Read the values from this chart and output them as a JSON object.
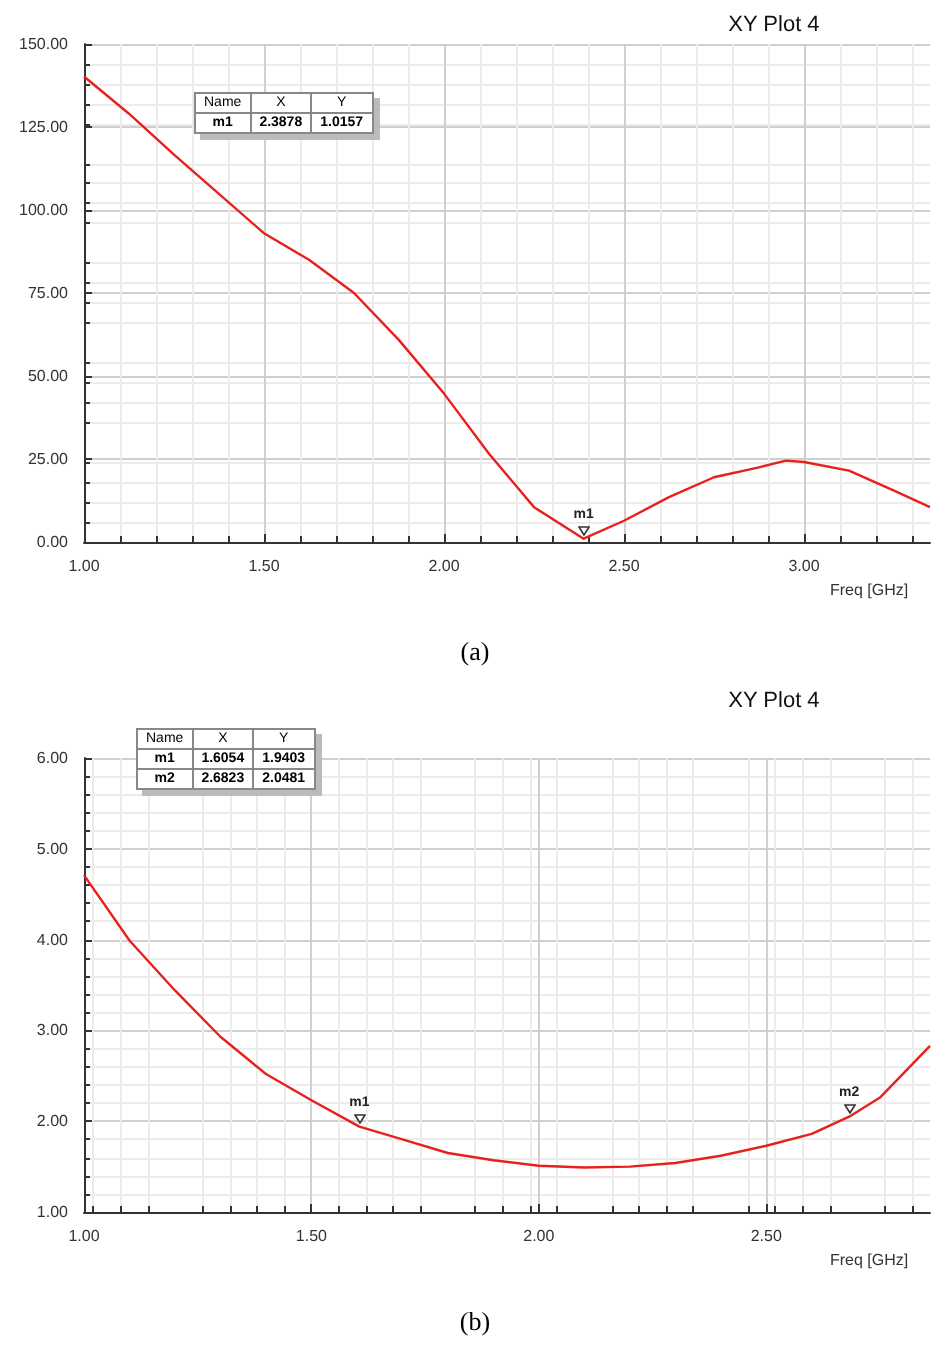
{
  "chart_data": [
    {
      "type": "line",
      "title": "XY Plot 4",
      "xlabel": "Freq [GHz]",
      "x": [
        1.0,
        1.125,
        1.25,
        1.5,
        1.625,
        1.75,
        1.875,
        2.0,
        2.125,
        2.25,
        2.3878,
        2.5,
        2.625,
        2.75,
        2.875,
        2.95,
        3.0,
        3.125,
        3.25,
        3.35
      ],
      "series": [
        {
          "color": "#e8201c",
          "values": [
            140.2,
            129,
            116.7,
            93,
            85,
            75,
            60.8,
            44.7,
            26.6,
            10.5,
            1,
            6.4,
            13.5,
            19.5,
            22.5,
            24.5,
            24.1,
            21.5,
            15.5,
            10.5
          ]
        }
      ],
      "xlim": [
        1,
        3.35
      ],
      "xticks": [
        {
          "value": 1,
          "label": "1.00"
        },
        {
          "value": 1.5,
          "label": "1.50"
        },
        {
          "value": 2,
          "label": "2.00"
        },
        {
          "value": 2.5,
          "label": "2.50"
        },
        {
          "value": 3,
          "label": "3.00"
        }
      ],
      "ylim": [
        0,
        150
      ],
      "yticks": [
        {
          "value": 0,
          "label": "0.00"
        },
        {
          "value": 25,
          "label": "25.00"
        },
        {
          "value": 50,
          "label": "50.00"
        },
        {
          "value": 75,
          "label": "75.00"
        },
        {
          "value": 100,
          "label": "100.00"
        },
        {
          "value": 125,
          "label": "125.00"
        },
        {
          "value": 150,
          "label": "150.00"
        }
      ],
      "grid": true,
      "marker": "none",
      "line_style": "solid",
      "annotations": [
        "(a)",
        "Name",
        "X",
        "Y",
        "m1",
        "2.3878",
        "1.0157",
        {
          "text": "m1",
          "x": 2.3878,
          "y": 1.0157
        }
      ]
    },
    {
      "type": "line",
      "title": "XY Plot 4",
      "xlabel": "Freq [GHz]",
      "x": [
        1.0,
        1.1,
        1.2,
        1.3,
        1.4,
        1.5,
        1.6054,
        1.7,
        1.8,
        1.9,
        2.0,
        2.1,
        2.2,
        2.3,
        2.4,
        2.5,
        2.6,
        2.6823,
        2.75,
        2.86
      ],
      "series": [
        {
          "color": "#e8201c",
          "values": [
            4.71,
            3.99,
            3.44,
            2.93,
            2.52,
            2.23,
            1.94,
            1.8,
            1.65,
            1.57,
            1.51,
            1.49,
            1.5,
            1.54,
            1.62,
            1.73,
            1.86,
            2.05,
            2.26,
            2.83
          ]
        }
      ],
      "xlim": [
        1,
        2.86
      ],
      "xticks": [
        {
          "value": 1,
          "label": "1.00"
        },
        {
          "value": 1.5,
          "label": "1.50"
        },
        {
          "value": 2,
          "label": "2.00"
        },
        {
          "value": 2.5,
          "label": "2.50"
        }
      ],
      "ylim": [
        1,
        6
      ],
      "yticks": [
        {
          "value": 1,
          "label": "1.00"
        },
        {
          "value": 2,
          "label": "2.00"
        },
        {
          "value": 3,
          "label": "3.00"
        },
        {
          "value": 4,
          "label": "4.00"
        },
        {
          "value": 5,
          "label": "5.00"
        },
        {
          "value": 6,
          "label": "6.00"
        }
      ],
      "grid": true,
      "marker": "none",
      "line_style": "solid",
      "annotations": [
        "(b)",
        "Name",
        "X",
        "Y",
        "m1",
        "1.6054",
        "1.9403",
        "m2",
        "2.6823",
        "2.0481",
        {
          "text": "m1",
          "x": 1.6054,
          "y": 1.9403
        },
        {
          "text": "m2",
          "x": 2.6823,
          "y": 2.0481
        }
      ]
    }
  ]
}
